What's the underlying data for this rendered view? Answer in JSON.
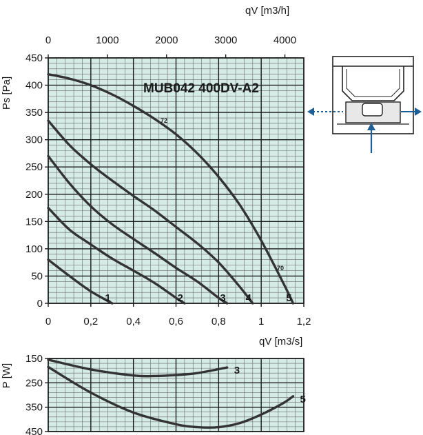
{
  "chart_data": [
    {
      "type": "line",
      "title": "MUB042 400DV-A2",
      "xlabel": "qV [m3/s]",
      "ylabel": "Ps [Pa]",
      "x_secondary_label": "qV [m3/h]",
      "xlim": [
        0,
        1.2
      ],
      "ylim": [
        0,
        450
      ],
      "x2lim": [
        0,
        4320
      ],
      "grid": true,
      "x_ticks": [
        "0",
        "0,2",
        "0,4",
        "0,6",
        "0,8",
        "1",
        "1,2"
      ],
      "x2_ticks": [
        "0",
        "1000",
        "2000",
        "3000",
        "4000"
      ],
      "y_ticks": [
        "0",
        "50",
        "100",
        "150",
        "200",
        "250",
        "300",
        "350",
        "400",
        "450"
      ],
      "series": [
        {
          "name": "1",
          "x": [
            0,
            0.1,
            0.2,
            0.3
          ],
          "y": [
            80,
            50,
            22,
            0
          ]
        },
        {
          "name": "2",
          "x": [
            0,
            0.1,
            0.2,
            0.3,
            0.4,
            0.5,
            0.6,
            0.64
          ],
          "y": [
            175,
            135,
            108,
            82,
            60,
            37,
            10,
            0
          ]
        },
        {
          "name": "3",
          "x": [
            0,
            0.1,
            0.2,
            0.3,
            0.4,
            0.5,
            0.6,
            0.7,
            0.8,
            0.84
          ],
          "y": [
            270,
            220,
            178,
            145,
            118,
            92,
            65,
            40,
            10,
            0
          ]
        },
        {
          "name": "4",
          "x": [
            0,
            0.1,
            0.2,
            0.3,
            0.4,
            0.5,
            0.6,
            0.7,
            0.8,
            0.9,
            0.96
          ],
          "y": [
            335,
            290,
            255,
            225,
            197,
            170,
            140,
            110,
            75,
            30,
            0
          ]
        },
        {
          "name": "5",
          "x": [
            0,
            0.1,
            0.2,
            0.3,
            0.4,
            0.5,
            0.6,
            0.7,
            0.8,
            0.9,
            1.0,
            1.1,
            1.15
          ],
          "y": [
            420,
            412,
            400,
            383,
            362,
            338,
            310,
            275,
            232,
            180,
            115,
            40,
            0
          ]
        }
      ],
      "annotations": [
        "72",
        "70"
      ]
    },
    {
      "type": "line",
      "ylabel": "P [W]",
      "xlim": [
        0,
        1.2
      ],
      "ylim": [
        150,
        450
      ],
      "y_inverted": true,
      "y_ticks": [
        "150",
        "250",
        "350",
        "450"
      ],
      "grid": true,
      "series": [
        {
          "name": "3",
          "x": [
            0,
            0.2,
            0.4,
            0.5,
            0.6,
            0.7,
            0.84
          ],
          "y": [
            155,
            195,
            220,
            222,
            218,
            210,
            187
          ]
        },
        {
          "name": "5",
          "x": [
            0,
            0.2,
            0.4,
            0.6,
            0.7,
            0.8,
            0.9,
            1.0,
            1.1,
            1.15
          ],
          "y": [
            185,
            290,
            372,
            420,
            432,
            432,
            415,
            380,
            335,
            305
          ]
        }
      ]
    }
  ],
  "diagram": {
    "arrow_color": "#1d5e96",
    "body_color": "#e8e8e8",
    "stroke_color": "#222222"
  }
}
